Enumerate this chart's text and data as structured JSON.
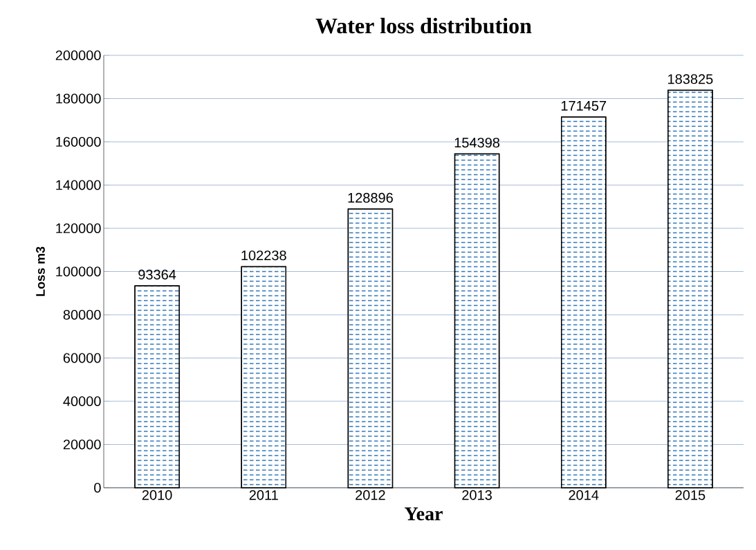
{
  "chart_data": {
    "type": "bar",
    "title": "Water loss distribution",
    "xlabel": "Year",
    "ylabel": "Loss m3",
    "categories": [
      "2010",
      "2011",
      "2012",
      "2013",
      "2014",
      "2015"
    ],
    "values": [
      93364,
      102238,
      128896,
      154398,
      171457,
      183825
    ],
    "color": "#2e75b6",
    "ylim": [
      0,
      200000
    ],
    "yticks": [
      0,
      20000,
      40000,
      60000,
      80000,
      100000,
      120000,
      140000,
      160000,
      180000,
      200000
    ],
    "grid": "y",
    "data_labels": true
  }
}
